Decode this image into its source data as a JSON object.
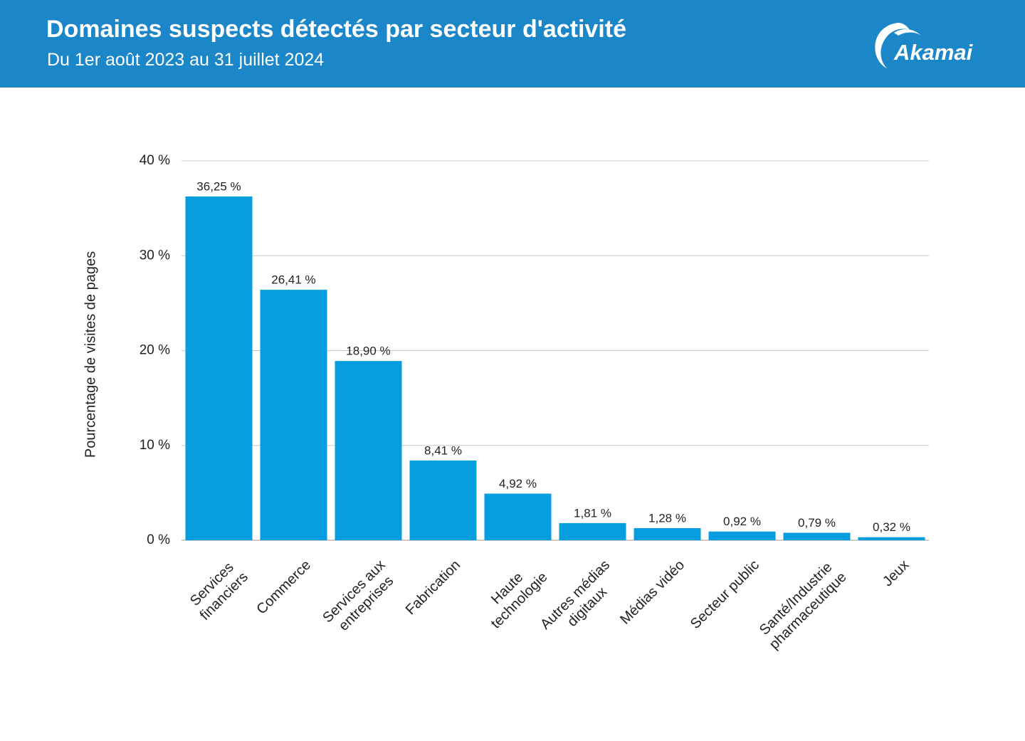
{
  "header": {
    "title": "Domaines suspects détectés par secteur d'activité",
    "subtitle": "Du 1er août 2023 au 31 juillet 2024",
    "logo": "Akamai"
  },
  "chart_data": {
    "type": "bar",
    "y_label": "Pourcentage de visites de pages",
    "categories": [
      "Services\nfinanciers",
      "Commerce",
      "Services aux\nentreprises",
      "Fabrication",
      "Haute\ntechnologie",
      "Autres médias\ndigitaux",
      "Médias vidéo",
      "Secteur public",
      "Santé/Industrie\npharmaceutique",
      "Jeux"
    ],
    "values": [
      36.25,
      26.41,
      18.9,
      8.41,
      4.92,
      1.81,
      1.28,
      0.92,
      0.79,
      0.32
    ],
    "value_labels": [
      "36,25 %",
      "26,41 %",
      "18,90 %",
      "8,41 %",
      "4,92 %",
      "1,81 %",
      "1,28 %",
      "0,92 %",
      "0,79 %",
      "0,32 %"
    ],
    "color": "#069ede",
    "ylim": [
      0,
      40
    ],
    "yticks": [
      {
        "value": 0,
        "label": "0 %"
      },
      {
        "value": 10,
        "label": "10 %"
      },
      {
        "value": 20,
        "label": "20 %"
      },
      {
        "value": 30,
        "label": "30 %"
      },
      {
        "value": 40,
        "label": "40 %"
      }
    ],
    "grid": true
  }
}
